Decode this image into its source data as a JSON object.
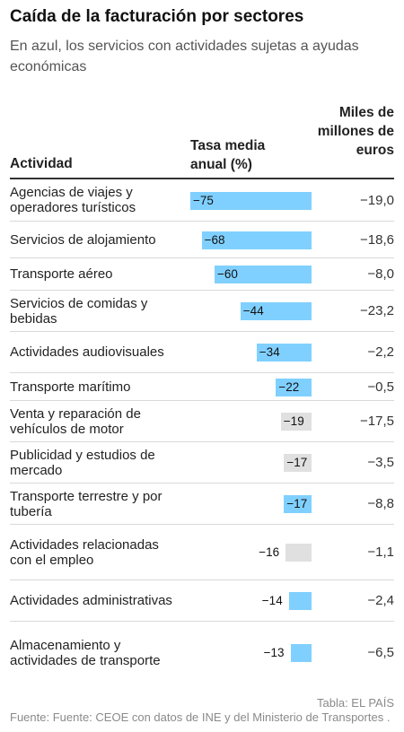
{
  "title": "Caída de la facturación por sectores",
  "subtitle": "En azul, los servicios con actividades sujetas a ayudas económicas",
  "headers": {
    "activity": "Actividad",
    "rate": "Tasa media anual (%)",
    "amount": "Miles de millones de euros"
  },
  "colors": {
    "subsidized": "#80d0ff",
    "other": "#e0e0e0"
  },
  "chart_data": {
    "type": "table",
    "columns": [
      "Actividad",
      "Tasa media anual (%)",
      "Miles de millones de euros"
    ],
    "rows": [
      {
        "activity": "Agencias de viajes y operadores turísticos",
        "rate": -75,
        "rate_label": "−75",
        "amount": "−19,0",
        "subsidized": true
      },
      {
        "activity": "Servicios de alojamiento",
        "rate": -68,
        "rate_label": "−68",
        "amount": "−18,6",
        "subsidized": true
      },
      {
        "activity": "Transporte aéreo",
        "rate": -60,
        "rate_label": "−60",
        "amount": "−8,0",
        "subsidized": true
      },
      {
        "activity": "Servicios de comidas y bebidas",
        "rate": -44,
        "rate_label": "−44",
        "amount": "−23,2",
        "subsidized": true
      },
      {
        "activity": "Actividades audiovisuales",
        "rate": -34,
        "rate_label": "−34",
        "amount": "−2,2",
        "subsidized": true
      },
      {
        "activity": "Transporte marítimo",
        "rate": -22,
        "rate_label": "−22",
        "amount": "−0,5",
        "subsidized": true
      },
      {
        "activity": "Venta y reparación de vehículos de motor",
        "rate": -19,
        "rate_label": "−19",
        "amount": "−17,5",
        "subsidized": false
      },
      {
        "activity": "Publicidad y estudios de mercado",
        "rate": -17,
        "rate_label": "−17",
        "amount": "−3,5",
        "subsidized": false
      },
      {
        "activity": "Transporte terrestre y por tubería",
        "rate": -17,
        "rate_label": "−17",
        "amount": "−8,8",
        "subsidized": true
      },
      {
        "activity": "Actividades relacionadas con el empleo",
        "rate": -16,
        "rate_label": "−16",
        "amount": "−1,1",
        "subsidized": false
      },
      {
        "activity": "Actividades administrativas",
        "rate": -14,
        "rate_label": "−14",
        "amount": "−2,4",
        "subsidized": true
      },
      {
        "activity": "Almacenamiento y actividades de transporte",
        "rate": -13,
        "rate_label": "−13",
        "amount": "−6,5",
        "subsidized": true
      }
    ]
  },
  "credit": "Tabla: EL PAÍS",
  "source": "Fuente: Fuente: CEOE con datos de INE y del Ministerio de Transportes ."
}
